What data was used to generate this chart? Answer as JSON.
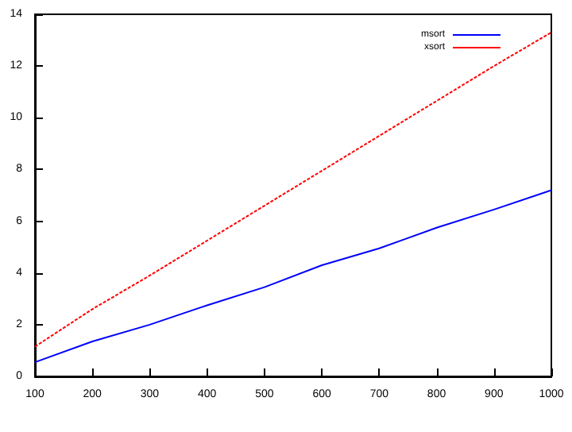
{
  "chart_data": {
    "type": "line",
    "x": [
      100,
      200,
      300,
      400,
      500,
      600,
      700,
      800,
      900,
      1000
    ],
    "series": [
      {
        "name": "msort",
        "color": "#0000ff",
        "values": [
          0.55,
          1.35,
          2.0,
          2.75,
          3.45,
          4.3,
          4.95,
          5.75,
          6.45,
          7.2
        ],
        "line_style": "solid"
      },
      {
        "name": "xsort",
        "color": "#ff0000",
        "values": [
          1.15,
          2.6,
          3.9,
          5.25,
          6.6,
          7.95,
          9.3,
          10.65,
          12.0,
          13.3
        ],
        "line_style": "dotted"
      }
    ],
    "xlim": [
      100,
      1000
    ],
    "xticks": [
      100,
      200,
      300,
      400,
      500,
      600,
      700,
      800,
      900,
      1000
    ],
    "ylim": [
      0,
      14
    ],
    "yticks": [
      0,
      2,
      4,
      6,
      8,
      10,
      12,
      14
    ],
    "grid": false,
    "legend": "top right",
    "marker": "none"
  }
}
